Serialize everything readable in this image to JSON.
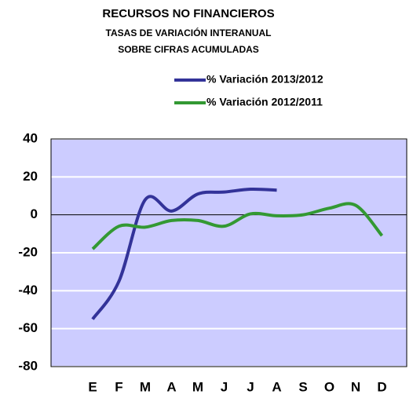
{
  "chart_data": {
    "type": "line",
    "title": "RECURSOS NO FINANCIEROS",
    "subtitle": [
      "TASAS DE VARIACIÓN INTERANUAL",
      "SOBRE CIFRAS ACUMULADAS"
    ],
    "categories": [
      "E",
      "F",
      "M",
      "A",
      "M",
      "J",
      "J",
      "A",
      "S",
      "O",
      "N",
      "D"
    ],
    "series": [
      {
        "name": "% Variación 2013/2012",
        "color": "#333399",
        "values": [
          -55,
          -35,
          8,
          2,
          11,
          12,
          13.5,
          13,
          null,
          null,
          null,
          null
        ]
      },
      {
        "name": "% Variación 2012/2011",
        "color": "#339933",
        "values": [
          -18,
          -6,
          -6.5,
          -3,
          -3,
          -6,
          0.5,
          -0.5,
          0,
          3.5,
          5,
          -11
        ]
      }
    ],
    "ylim": [
      -80,
      40
    ],
    "yticks": [
      -80,
      -60,
      -40,
      -20,
      0,
      20,
      40
    ],
    "grid": true
  }
}
